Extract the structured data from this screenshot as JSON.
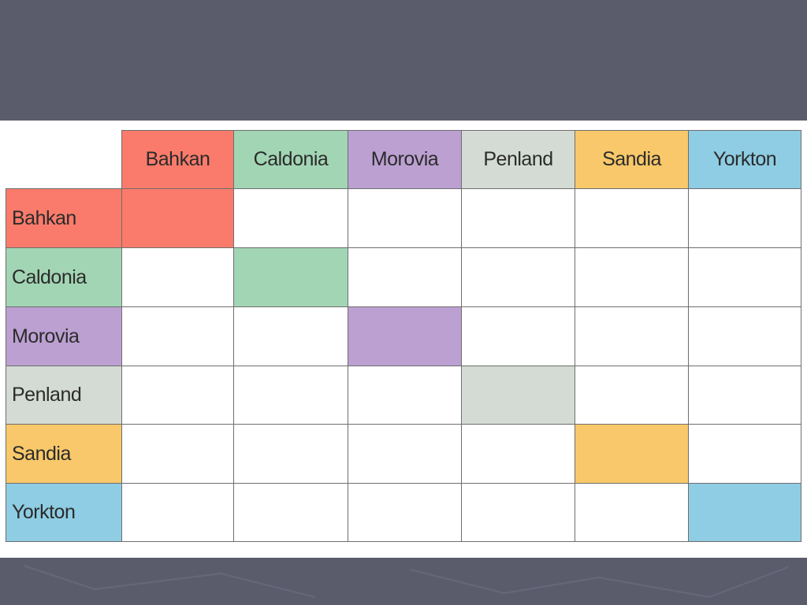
{
  "table": {
    "column_headers": [
      "Bahkan",
      "Caldonia",
      "Morovia",
      "Penland",
      "Sandia",
      "Yorkton"
    ],
    "row_headers": [
      "Bahkan",
      "Caldonia",
      "Morovia",
      "Penland",
      "Sandia",
      "Yorkton"
    ]
  }
}
